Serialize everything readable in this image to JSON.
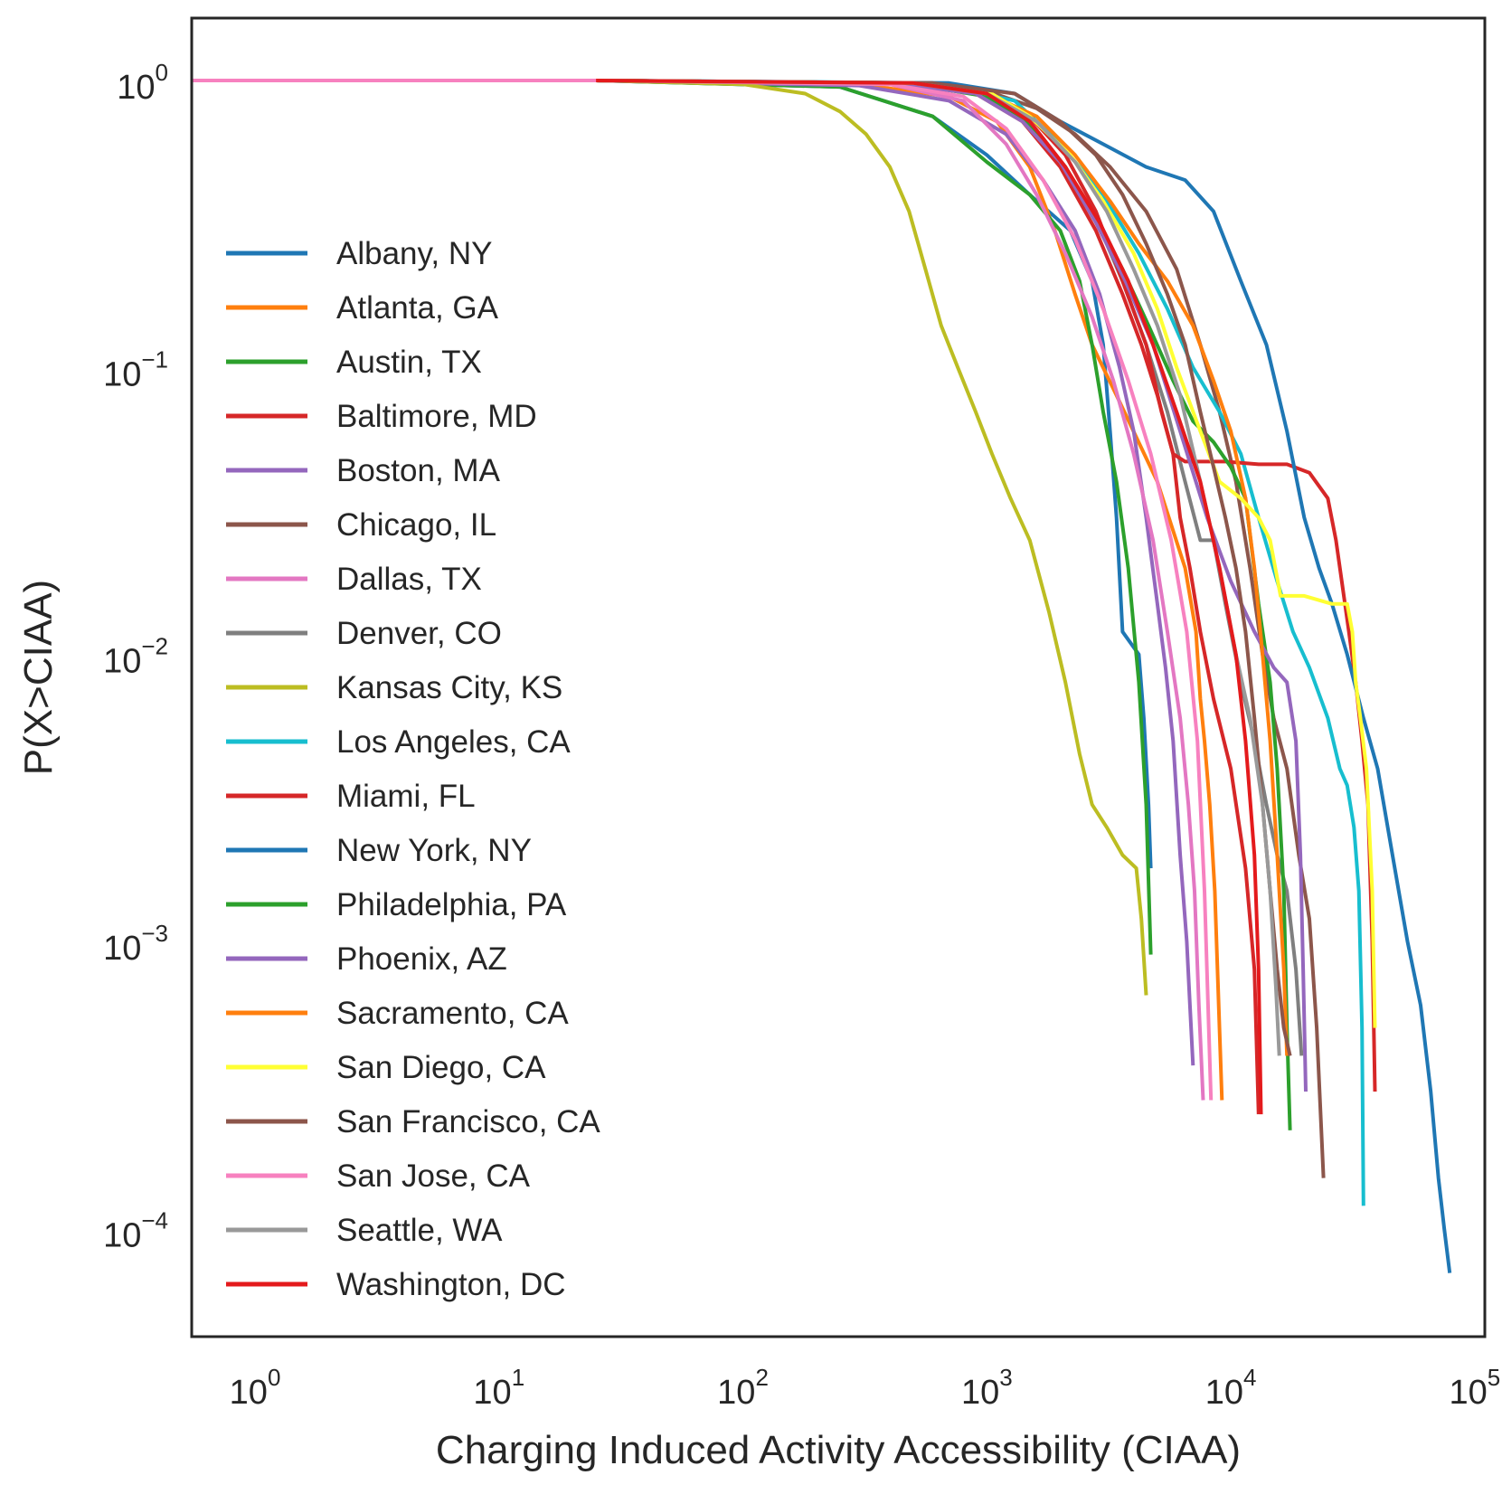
{
  "chart_data": {
    "type": "line",
    "title": "",
    "xlabel": "Charging Induced Activity Accessibility (CIAA)",
    "ylabel": "P(X>CIAA)",
    "xscale": "log",
    "yscale": "log",
    "xlim": [
      0.55,
      110000
    ],
    "ylim": [
      4.2e-05,
      1.65
    ],
    "grid": false,
    "legend_position": "left",
    "x_ticks": [
      {
        "base": "10",
        "exp": "0",
        "value": 1
      },
      {
        "base": "10",
        "exp": "1",
        "value": 10
      },
      {
        "base": "10",
        "exp": "2",
        "value": 100
      },
      {
        "base": "10",
        "exp": "3",
        "value": 1000
      },
      {
        "base": "10",
        "exp": "4",
        "value": 10000
      },
      {
        "base": "10",
        "exp": "5",
        "value": 100000
      }
    ],
    "y_ticks": [
      {
        "base": "10",
        "exp": "0",
        "value": 1
      },
      {
        "base": "10",
        "exp": "−1",
        "value": 0.1
      },
      {
        "base": "10",
        "exp": "−2",
        "value": 0.01
      },
      {
        "base": "10",
        "exp": "−3",
        "value": 0.001
      },
      {
        "base": "10",
        "exp": "−4",
        "value": 0.0001
      }
    ],
    "series": [
      {
        "name": "Albany, NY",
        "color": "#1f77b4",
        "x": [
          25,
          250,
          600,
          1000,
          1500,
          2200,
          2700,
          3000,
          3200,
          3400,
          3600,
          4200,
          4400,
          4600,
          4700
        ],
        "y": [
          1,
          0.95,
          0.75,
          0.55,
          0.4,
          0.3,
          0.2,
          0.12,
          0.06,
          0.03,
          0.012,
          0.01,
          0.006,
          0.003,
          0.0018
        ]
      },
      {
        "name": "Atlanta, GA",
        "color": "#ff7f0e",
        "x": [
          25,
          300,
          700,
          1100,
          1500,
          1900,
          2300,
          2700,
          3400,
          5000,
          6500,
          7200,
          7500,
          7800,
          8200,
          8600,
          9200
        ],
        "y": [
          1,
          0.97,
          0.88,
          0.72,
          0.5,
          0.3,
          0.18,
          0.12,
          0.08,
          0.04,
          0.02,
          0.012,
          0.007,
          0.005,
          0.003,
          0.0015,
          0.00028
        ]
      },
      {
        "name": "Austin, TX",
        "color": "#2ca02c",
        "x": [
          25,
          250,
          600,
          1000,
          1500,
          2000,
          2400,
          2700,
          3000,
          3400,
          3800,
          4200,
          4500,
          4700
        ],
        "y": [
          1,
          0.95,
          0.75,
          0.52,
          0.4,
          0.3,
          0.2,
          0.12,
          0.07,
          0.04,
          0.02,
          0.008,
          0.003,
          0.0009
        ]
      },
      {
        "name": "Baltimore, MD",
        "color": "#d62728",
        "x": [
          25,
          400,
          900,
          1400,
          2000,
          2800,
          3600,
          4300,
          5000,
          5800,
          6200,
          6800,
          7500,
          8500,
          10000,
          11500,
          12500,
          13000
        ],
        "y": [
          1,
          0.98,
          0.9,
          0.72,
          0.5,
          0.3,
          0.18,
          0.12,
          0.08,
          0.05,
          0.03,
          0.02,
          0.012,
          0.007,
          0.004,
          0.0018,
          0.0008,
          0.00025
        ]
      },
      {
        "name": "Boston, MA",
        "color": "#9467bd",
        "x": [
          25,
          300,
          700,
          1200,
          1700,
          2300,
          2900,
          3500,
          4000,
          4500,
          5000,
          5400,
          5800,
          6200,
          6600,
          6800,
          7000
        ],
        "y": [
          1,
          0.96,
          0.85,
          0.65,
          0.45,
          0.3,
          0.18,
          0.1,
          0.06,
          0.03,
          0.015,
          0.009,
          0.005,
          0.002,
          0.001,
          0.0006,
          0.00037
        ]
      },
      {
        "name": "Chicago, IL",
        "color": "#8c564b",
        "x": [
          25,
          500,
          1000,
          1600,
          2300,
          3200,
          4500,
          6000,
          7500,
          9000,
          10500,
          12000,
          13500,
          15000,
          17000,
          19000,
          21000,
          22500,
          24000
        ],
        "y": [
          1,
          0.98,
          0.92,
          0.8,
          0.65,
          0.5,
          0.35,
          0.22,
          0.12,
          0.07,
          0.04,
          0.02,
          0.01,
          0.006,
          0.004,
          0.002,
          0.0012,
          0.0005,
          0.00015
        ]
      },
      {
        "name": "Dallas, TX",
        "color": "#e377c2",
        "x": [
          25,
          400,
          800,
          1200,
          1600,
          2100,
          2700,
          3300,
          4000,
          4800,
          5500,
          6200,
          6700,
          7100,
          7400,
          7700
        ],
        "y": [
          1,
          0.97,
          0.85,
          0.6,
          0.4,
          0.25,
          0.15,
          0.09,
          0.05,
          0.025,
          0.012,
          0.006,
          0.003,
          0.0015,
          0.0006,
          0.00028
        ]
      },
      {
        "name": "Denver, CO",
        "color": "#7f7f7f",
        "x": [
          25,
          500,
          1000,
          1500,
          2100,
          2800,
          3600,
          4500,
          5500,
          6500,
          7500,
          8500,
          9500,
          11000,
          12500,
          14000,
          15500,
          17000,
          18500,
          19500
        ],
        "y": [
          1,
          0.98,
          0.9,
          0.72,
          0.5,
          0.33,
          0.2,
          0.12,
          0.07,
          0.04,
          0.025,
          0.025,
          0.015,
          0.008,
          0.005,
          0.003,
          0.002,
          0.0015,
          0.0008,
          0.0004
        ]
      },
      {
        "name": "Kansas City, KS",
        "color": "#bcbd22",
        "x": [
          25,
          100,
          180,
          250,
          320,
          400,
          480,
          560,
          650,
          760,
          900,
          1050,
          1250,
          1500,
          1800,
          2100,
          2400,
          2700,
          3100,
          3600,
          4100,
          4300,
          4500
        ],
        "y": [
          1,
          0.97,
          0.9,
          0.78,
          0.65,
          0.5,
          0.35,
          0.22,
          0.14,
          0.1,
          0.07,
          0.05,
          0.035,
          0.025,
          0.014,
          0.008,
          0.0045,
          0.003,
          0.0025,
          0.002,
          0.0018,
          0.0012,
          0.00065
        ]
      },
      {
        "name": "Los Angeles, CA",
        "color": "#17becf",
        "x": [
          25,
          600,
          1300,
          2000,
          3000,
          4200,
          5500,
          7000,
          9000,
          11000,
          13000,
          15500,
          18000,
          21000,
          25000,
          28000,
          30000,
          32000,
          33500,
          34500,
          35000
        ],
        "y": [
          1,
          0.98,
          0.85,
          0.6,
          0.4,
          0.25,
          0.16,
          0.1,
          0.07,
          0.05,
          0.03,
          0.018,
          0.012,
          0.009,
          0.006,
          0.004,
          0.0035,
          0.0025,
          0.0015,
          0.0005,
          0.00012
        ]
      },
      {
        "name": "Miami, FL",
        "color": "#d62728",
        "x": [
          25,
          500,
          1000,
          1500,
          2100,
          2800,
          3600,
          4500,
          5200,
          5800,
          6500,
          9500,
          13000,
          17000,
          21000,
          25000,
          27000,
          28500,
          30500,
          32500,
          34500,
          36500,
          38000,
          39000
        ],
        "y": [
          1,
          0.98,
          0.92,
          0.75,
          0.55,
          0.35,
          0.2,
          0.12,
          0.07,
          0.05,
          0.047,
          0.047,
          0.046,
          0.046,
          0.043,
          0.035,
          0.025,
          0.018,
          0.012,
          0.008,
          0.005,
          0.003,
          0.001,
          0.0003
        ]
      },
      {
        "name": "New York, NY",
        "color": "#1f77b4",
        "x": [
          25,
          700,
          1300,
          2000,
          3000,
          4500,
          6500,
          8500,
          11000,
          14000,
          17000,
          20000,
          23000,
          26000,
          30000,
          35000,
          40000,
          46000,
          53000,
          60000,
          66000,
          71000,
          75000,
          79000
        ],
        "y": [
          1,
          0.98,
          0.9,
          0.72,
          0.6,
          0.5,
          0.45,
          0.35,
          0.2,
          0.12,
          0.06,
          0.03,
          0.02,
          0.015,
          0.01,
          0.006,
          0.004,
          0.002,
          0.001,
          0.0006,
          0.0003,
          0.00015,
          0.0001,
          7e-05
        ]
      },
      {
        "name": "Philadelphia, PA",
        "color": "#2ca02c",
        "x": [
          25,
          500,
          1000,
          1500,
          2100,
          2800,
          3600,
          4600,
          5800,
          7000,
          8500,
          10000,
          11500,
          13000,
          14500,
          15500,
          16500,
          17000,
          17500
        ],
        "y": [
          1,
          0.97,
          0.88,
          0.7,
          0.5,
          0.33,
          0.22,
          0.14,
          0.09,
          0.065,
          0.055,
          0.045,
          0.035,
          0.015,
          0.008,
          0.004,
          0.0015,
          0.0005,
          0.00022
        ]
      },
      {
        "name": "Phoenix, AZ",
        "color": "#9467bd",
        "x": [
          25,
          400,
          900,
          1400,
          2000,
          2800,
          3700,
          4800,
          6200,
          8000,
          10000,
          12500,
          15000,
          17000,
          18500,
          19300,
          19800,
          20300
        ],
        "y": [
          1,
          0.98,
          0.9,
          0.72,
          0.52,
          0.32,
          0.2,
          0.12,
          0.06,
          0.03,
          0.018,
          0.012,
          0.009,
          0.008,
          0.005,
          0.002,
          0.0008,
          0.0003
        ]
      },
      {
        "name": "Sacramento, CA",
        "color": "#ff7f0e",
        "x": [
          25,
          500,
          1000,
          1600,
          2300,
          3200,
          4200,
          5500,
          7000,
          8500,
          10000,
          11500,
          12500,
          13500,
          14500,
          15500,
          16500,
          17000
        ],
        "y": [
          1,
          0.98,
          0.9,
          0.75,
          0.55,
          0.38,
          0.27,
          0.2,
          0.14,
          0.09,
          0.06,
          0.035,
          0.02,
          0.01,
          0.005,
          0.002,
          0.0008,
          0.0004
        ]
      },
      {
        "name": "San Diego, CA",
        "color": "#ffff33",
        "x": [
          25,
          500,
          1000,
          1500,
          2200,
          3000,
          4000,
          5000,
          6000,
          7500,
          9000,
          11000,
          13000,
          14500,
          16000,
          20000,
          26000,
          30000,
          31500,
          32500,
          34000,
          36000,
          38000,
          39000
        ],
        "y": [
          1,
          0.98,
          0.92,
          0.75,
          0.55,
          0.38,
          0.25,
          0.16,
          0.1,
          0.06,
          0.04,
          0.035,
          0.03,
          0.025,
          0.016,
          0.016,
          0.015,
          0.015,
          0.012,
          0.008,
          0.006,
          0.004,
          0.0015,
          0.0005
        ]
      },
      {
        "name": "San Francisco, CA",
        "color": "#8c564b",
        "x": [
          25,
          600,
          1300,
          2000,
          2800,
          3600,
          4500,
          5500,
          6500,
          7500,
          8500,
          9500,
          10500,
          11500,
          12500,
          13500,
          14500,
          15500,
          16500,
          17500
        ],
        "y": [
          1,
          0.98,
          0.9,
          0.72,
          0.55,
          0.4,
          0.27,
          0.18,
          0.12,
          0.07,
          0.045,
          0.03,
          0.02,
          0.012,
          0.006,
          0.003,
          0.0015,
          0.0008,
          0.0005,
          0.0004
        ]
      },
      {
        "name": "San Jose, CA",
        "color": "#f781bf",
        "x": [
          25,
          400,
          800,
          1200,
          1700,
          2300,
          3000,
          3800,
          4700,
          5700,
          6600,
          7300,
          7800,
          8300
        ],
        "y": [
          1,
          0.97,
          0.88,
          0.68,
          0.45,
          0.28,
          0.16,
          0.09,
          0.05,
          0.025,
          0.012,
          0.005,
          0.0015,
          0.00028
        ]
      },
      {
        "name": "Seattle, WA",
        "color": "#999999",
        "x": [
          25,
          500,
          1000,
          1600,
          2300,
          3100,
          4000,
          5000,
          6200,
          7500,
          9000,
          10500,
          12000,
          13500,
          14500,
          15300,
          15800
        ],
        "y": [
          1,
          0.98,
          0.9,
          0.72,
          0.52,
          0.35,
          0.22,
          0.14,
          0.08,
          0.04,
          0.02,
          0.01,
          0.006,
          0.003,
          0.0015,
          0.0007,
          0.0004
        ]
      },
      {
        "name": "Washington, DC",
        "color": "#e41a1c",
        "x": [
          25,
          500,
          1000,
          1500,
          2100,
          2900,
          3800,
          4800,
          6000,
          7500,
          9000,
          10500,
          11500,
          12500,
          13000,
          13300
        ],
        "y": [
          1,
          0.98,
          0.9,
          0.72,
          0.5,
          0.32,
          0.2,
          0.12,
          0.07,
          0.04,
          0.02,
          0.01,
          0.005,
          0.002,
          0.0008,
          0.00025
        ]
      }
    ]
  }
}
